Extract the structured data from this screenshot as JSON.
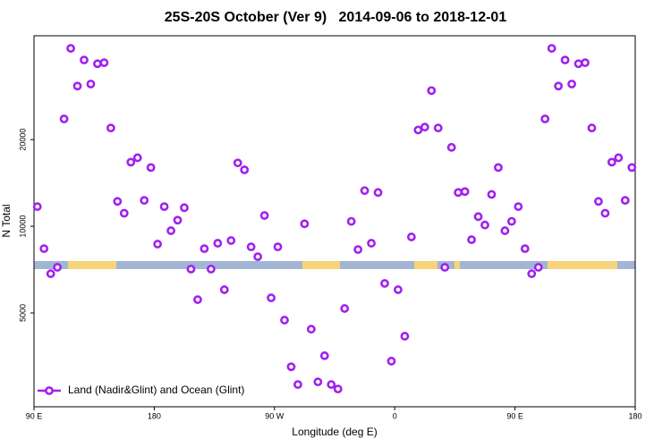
{
  "chart_data": {
    "type": "scatter",
    "title": "25S-20S October (Ver 9)   2014-09-06 to 2018-12-01",
    "x_label": "Longitude (deg E)",
    "y_label": "N Total",
    "xlim": [
      90,
      540
    ],
    "xticks": [
      {
        "value": 90,
        "label": "90 E"
      },
      180,
      {
        "value": 270,
        "label": "90 W"
      },
      {
        "value": 360,
        "label": "0"
      },
      {
        "value": 450,
        "label": "90 E"
      },
      {
        "value": 540,
        "label": "180"
      }
    ],
    "ylim": [
      2360,
      45900
    ],
    "yscale": "log",
    "yticks": [
      5000,
      10000,
      20000
    ],
    "legend": "bottom-left",
    "series": [
      {
        "name": "Land (Nadir&Glint) and Ocean (Glint)",
        "color": "#a020f0",
        "x": [
          92.5,
          97.5,
          102.5,
          107.5,
          112.5,
          117.5,
          122.5,
          127.5,
          132.5,
          137.5,
          142.5,
          147.5,
          152.5,
          157.5,
          162.5,
          167.5,
          172.5,
          177.5,
          182.5,
          187.5,
          192.5,
          197.5,
          202.5,
          207.5,
          212.5,
          217.5,
          222.5,
          227.5,
          232.5,
          237.5,
          242.5,
          247.5,
          252.5,
          257.5,
          262.5,
          267.5,
          272.5,
          277.5,
          282.5,
          287.5,
          292.5,
          297.5,
          302.5,
          307.5,
          312.5,
          317.5,
          322.5,
          327.5,
          332.5,
          337.5,
          342.5,
          347.5,
          352.5,
          357.5,
          362.5,
          367.5,
          372.5,
          377.5,
          382.5,
          387.5,
          392.5,
          397.5,
          402.5,
          407.5,
          412.5,
          417.5,
          422.5,
          427.5,
          432.5,
          437.5,
          442.5,
          447.5,
          452.5,
          457.5,
          462.5,
          467.5,
          472.5,
          477.5,
          482.5,
          487.5,
          492.5,
          497.5,
          502.5,
          507.5,
          512.5,
          517.5,
          522.5,
          527.5,
          532.5,
          537.5
        ],
        "values": [
          11700,
          8360,
          6840,
          7200,
          23600,
          41500,
          30700,
          37800,
          31200,
          36700,
          37000,
          21950,
          12200,
          11100,
          16700,
          17300,
          12300,
          16000,
          8670,
          11700,
          9650,
          10500,
          11600,
          7100,
          5560,
          8360,
          7100,
          8730,
          6020,
          8920,
          16600,
          15700,
          8480,
          7840,
          10900,
          5640,
          8480,
          4720,
          3250,
          2820,
          10200,
          4390,
          2880,
          3550,
          2820,
          2720,
          5180,
          10400,
          8300,
          13300,
          8730,
          13100,
          6330,
          3400,
          6020,
          4150,
          9180,
          21600,
          22100,
          29600,
          21950,
          7200,
          18800,
          13100,
          13200,
          8980,
          10800,
          10100,
          12900,
          16000,
          9650,
          10400,
          11700,
          8360,
          6840,
          7200,
          23600,
          41500,
          30700,
          37800,
          31200,
          36700,
          37000,
          21950,
          12200,
          11100,
          16700,
          17300,
          12300,
          16000
        ]
      }
    ]
  }
}
